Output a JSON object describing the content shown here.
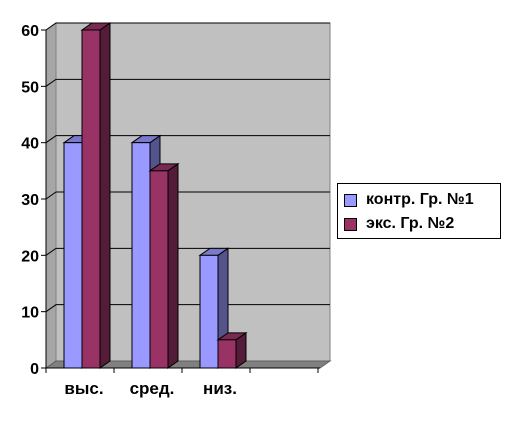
{
  "chart_data": {
    "type": "bar",
    "style": "3d-clustered-column",
    "categories": [
      "выс.",
      "сред.",
      "низ.",
      ""
    ],
    "series": [
      {
        "name": "контр. Гр. №1",
        "values": [
          40,
          40,
          20,
          null
        ],
        "color": "#9999FF"
      },
      {
        "name": "экс. Гр. №2",
        "values": [
          60,
          35,
          5,
          null
        ],
        "color": "#993366"
      }
    ],
    "ylim": [
      0,
      60
    ],
    "yticks": [
      0,
      10,
      20,
      30,
      40,
      50,
      60
    ],
    "grid": true,
    "wall_color": "#C0C0C0",
    "legend_position": "right"
  }
}
